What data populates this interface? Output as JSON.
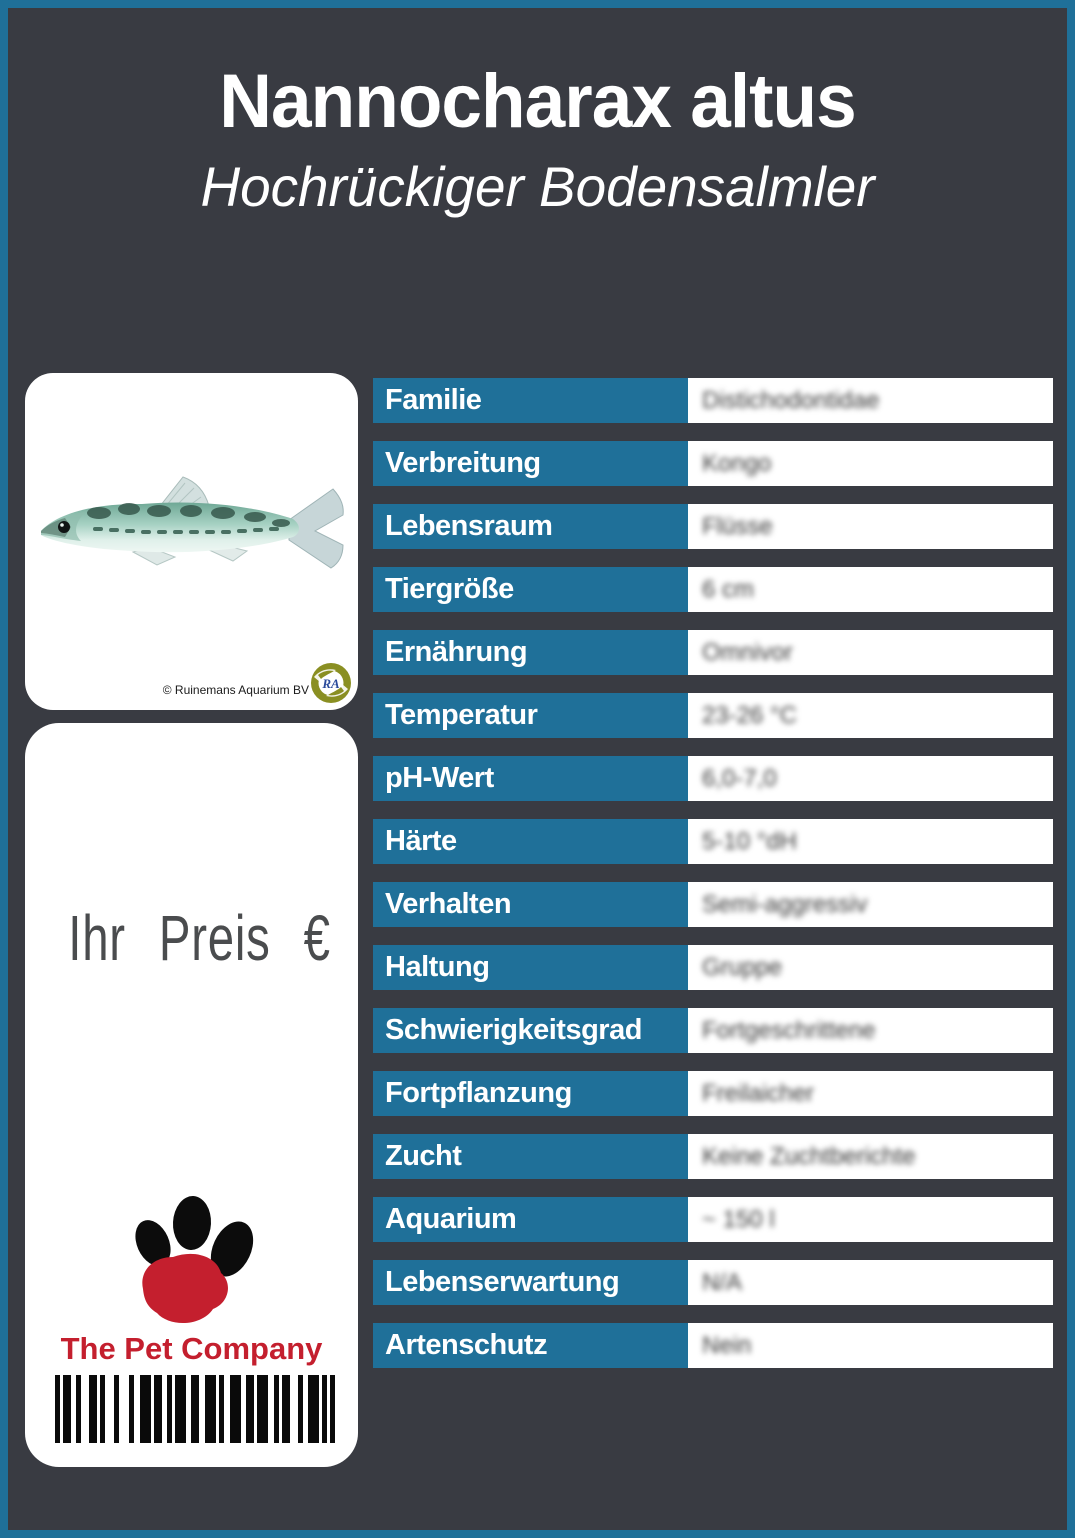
{
  "header": {
    "title": "Nannocharax altus",
    "subtitle": "Hochrückiger Bodensalmler"
  },
  "photo": {
    "credit": "© Ruinemans Aquarium BV",
    "logo_text": "RA"
  },
  "price": {
    "label": "Ihr Preis €"
  },
  "brand": {
    "name": "The Pet Company"
  },
  "table": {
    "rows": [
      {
        "label": "Familie",
        "value": "Distichodontidae"
      },
      {
        "label": "Verbreitung",
        "value": "Kongo"
      },
      {
        "label": "Lebensraum",
        "value": "Flüsse"
      },
      {
        "label": "Tiergröße",
        "value": "6 cm"
      },
      {
        "label": "Ernährung",
        "value": "Omnivor"
      },
      {
        "label": "Temperatur",
        "value": "23-26 °C"
      },
      {
        "label": "pH-Wert",
        "value": "6,0-7,0"
      },
      {
        "label": "Härte",
        "value": "5-10 °dH"
      },
      {
        "label": "Verhalten",
        "value": "Semi-aggressiv"
      },
      {
        "label": "Haltung",
        "value": "Gruppe"
      },
      {
        "label": "Schwierigkeitsgrad",
        "value": "Fortgeschrittene"
      },
      {
        "label": "Fortpflanzung",
        "value": "Freilaicher"
      },
      {
        "label": "Zucht",
        "value": "Keine Zuchtberichte"
      },
      {
        "label": "Aquarium",
        "value": "~ 150 l"
      },
      {
        "label": "Lebenserwartung",
        "value": "N/A"
      },
      {
        "label": "Artenschutz",
        "value": "Nein"
      }
    ]
  },
  "colors": {
    "accent_blue": "#1f7099",
    "background": "#393b42",
    "card_white": "#ffffff",
    "brand_red": "#c41f2e",
    "price_text": "#4a4c4e"
  },
  "barcode": {
    "height": 68,
    "bars": [
      [
        5,
        3
      ],
      [
        8,
        5
      ],
      [
        5,
        8
      ],
      [
        8,
        3
      ],
      [
        5,
        9
      ],
      [
        5,
        10
      ],
      [
        5,
        6
      ],
      [
        11,
        3
      ],
      [
        8,
        5
      ],
      [
        5,
        3
      ],
      [
        11,
        5
      ],
      [
        8,
        6
      ],
      [
        11,
        3
      ],
      [
        5,
        6
      ],
      [
        11,
        5
      ],
      [
        8,
        3
      ],
      [
        11,
        6
      ],
      [
        5,
        3
      ],
      [
        8,
        8
      ],
      [
        5,
        5
      ],
      [
        11,
        3
      ],
      [
        5,
        3
      ],
      [
        5,
        0
      ]
    ]
  }
}
